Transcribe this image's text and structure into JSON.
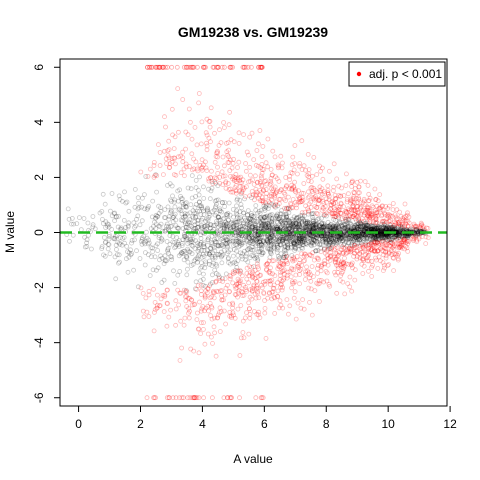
{
  "chart_data": {
    "type": "scatter",
    "title": "GM19238 vs. GM19239",
    "xlabel": "A value",
    "ylabel": "M value",
    "xlim": [
      -0.6,
      11.9
    ],
    "ylim": [
      -6.3,
      6.3
    ],
    "x_ticks": [
      0,
      2,
      4,
      6,
      8,
      10,
      12
    ],
    "y_ticks": [
      -6,
      -4,
      -2,
      0,
      2,
      4,
      6
    ],
    "x_tick_labels": [
      "0",
      "2",
      "4",
      "6",
      "8",
      "10",
      "12"
    ],
    "y_tick_labels": [
      "-6",
      "-4",
      "-2",
      "0",
      "2",
      "4",
      "6"
    ],
    "grid": false,
    "legend": {
      "position": "top-right",
      "entries": [
        {
          "label": "adj. p < 0.001",
          "color": "#ff0000"
        }
      ]
    },
    "reference_line": {
      "y": 0,
      "color": "#22bb22",
      "style": "dashed"
    },
    "series": [
      {
        "name": "adj. p < 0.001",
        "color": "#ff0000",
        "description": "significant points forming outer funnel"
      },
      {
        "color": "#000000",
        "description": "non-significant points forming inner funnel"
      }
    ],
    "point_clouds": {
      "saturated_top_band": {
        "y": 6,
        "x_range": [
          2.2,
          6.0
        ]
      },
      "saturated_bottom_band": {
        "y": -6,
        "x_range": [
          2.2,
          6.0
        ]
      },
      "black_envelope": [
        [
          0.0,
          0.9
        ],
        [
          1.0,
          1.6
        ],
        [
          2.0,
          2.0
        ],
        [
          3.0,
          2.2
        ],
        [
          4.0,
          2.0
        ],
        [
          5.0,
          1.5
        ],
        [
          6.0,
          1.1
        ],
        [
          7.0,
          0.8
        ],
        [
          8.0,
          0.6
        ],
        [
          9.0,
          0.45
        ],
        [
          10.0,
          0.3
        ],
        [
          11.0,
          0.1
        ]
      ],
      "red_envelope": [
        [
          2.0,
          3.5
        ],
        [
          3.0,
          4.5
        ],
        [
          4.0,
          4.5
        ],
        [
          5.0,
          4.0
        ],
        [
          6.0,
          3.5
        ],
        [
          7.0,
          3.0
        ],
        [
          8.0,
          2.5
        ],
        [
          9.0,
          1.8
        ],
        [
          10.0,
          1.2
        ],
        [
          11.0,
          0.4
        ]
      ],
      "x_extent": [
        -0.4,
        11.3
      ]
    },
    "colors": {
      "nonsignificant": "#000000",
      "significant": "#ff0000",
      "reference": "#22bb22"
    }
  }
}
